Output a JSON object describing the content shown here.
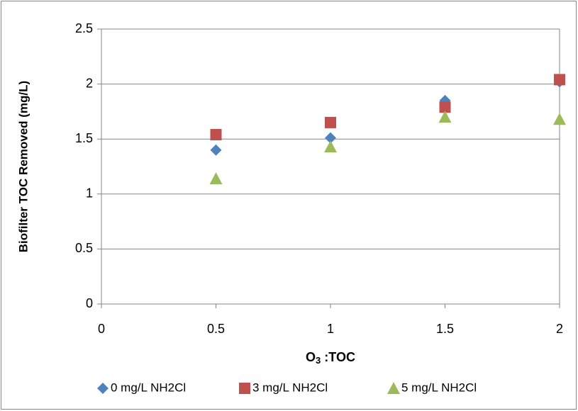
{
  "chart_data": {
    "type": "scatter",
    "ylabel": "Biofilter TOC Removed (mg/L)",
    "xlabel": [
      "O",
      "3",
      " :TOC"
    ],
    "xlim": [
      0,
      2
    ],
    "xticks": [
      0,
      0.5,
      1,
      1.5,
      2
    ],
    "ylim": [
      0,
      2.5
    ],
    "yticks": [
      0,
      0.5,
      1,
      1.5,
      2,
      2.5
    ],
    "grid": true,
    "legend": "bottom",
    "x": [
      0.5,
      1,
      1.5,
      2
    ],
    "series": [
      {
        "name": "0 mg/L NH2Cl",
        "color": "#4f81bd",
        "marker": "diamond",
        "values": [
          1.4,
          1.51,
          1.85,
          2.02
        ]
      },
      {
        "name": "3 mg/L NH2Cl",
        "color": "#c0504d",
        "marker": "square",
        "values": [
          1.54,
          1.65,
          1.79,
          2.04
        ]
      },
      {
        "name": "5 mg/L NH2Cl",
        "color": "#9bbb59",
        "marker": "triangle",
        "values": [
          1.14,
          1.43,
          1.7,
          1.68
        ]
      }
    ]
  }
}
